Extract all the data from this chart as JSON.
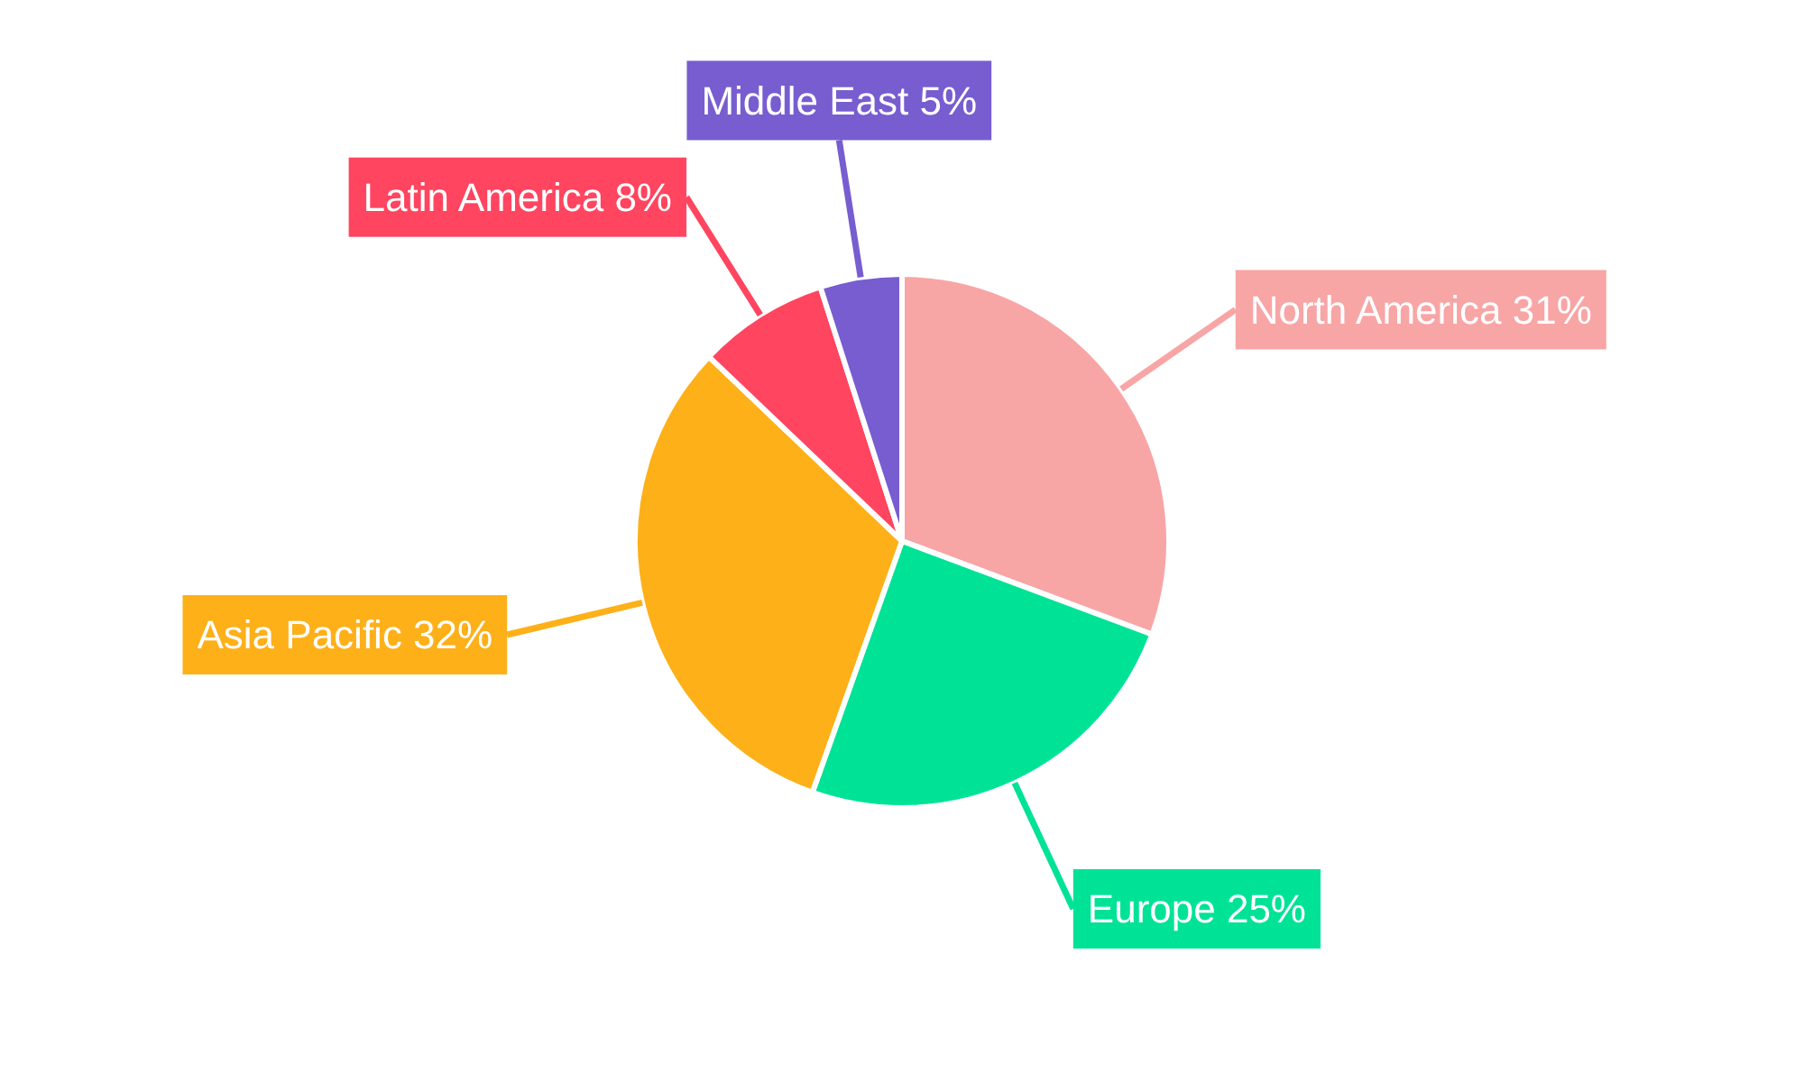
{
  "chart_data": {
    "type": "pie",
    "categories": [
      "North America",
      "Europe",
      "Asia Pacific",
      "Latin America",
      "Middle East"
    ],
    "values": [
      31,
      25,
      32,
      8,
      5
    ],
    "value_labels": [
      "31%",
      "25%",
      "32%",
      "8%",
      "5%"
    ],
    "colors": [
      "#f8a5a6",
      "#00e396",
      "#feb019",
      "#ff4560",
      "#775dd0"
    ]
  }
}
